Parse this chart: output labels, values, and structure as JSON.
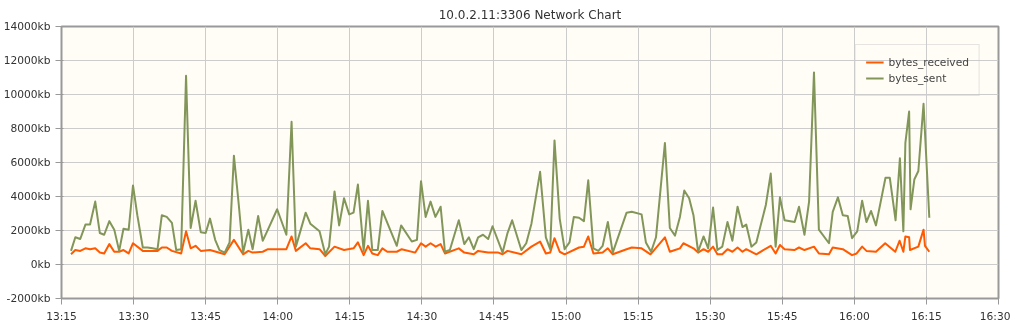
{
  "chart_data": {
    "type": "line",
    "title": "10.0.2.11:3306 Network Chart",
    "xlim": [
      13.25,
      16.5
    ],
    "xticks": [
      {
        "value": 13.25,
        "label": "13:15"
      },
      {
        "value": 13.5,
        "label": "13:30"
      },
      {
        "value": 13.75,
        "label": "13:45"
      },
      {
        "value": 14,
        "label": "14:00"
      },
      {
        "value": 14.25,
        "label": "14:15"
      },
      {
        "value": 14.5,
        "label": "14:30"
      },
      {
        "value": 14.75,
        "label": "14:45"
      },
      {
        "value": 15,
        "label": "15:00"
      },
      {
        "value": 15.25,
        "label": "15:15"
      },
      {
        "value": 15.5,
        "label": "15:30"
      },
      {
        "value": 15.75,
        "label": "15:45"
      },
      {
        "value": 16,
        "label": "16:00"
      },
      {
        "value": 16.25,
        "label": "16:15"
      },
      {
        "value": 16.5,
        "label": "16:30"
      }
    ],
    "ylim": [
      -2000,
      14000
    ],
    "yticks": [
      {
        "value": -2000,
        "label": "-2000kb"
      },
      {
        "value": 0,
        "label": "0kb"
      },
      {
        "value": 2000,
        "label": "2000kb"
      },
      {
        "value": 4000,
        "label": "4000kb"
      },
      {
        "value": 6000,
        "label": "6000kb"
      },
      {
        "value": 8000,
        "label": "8000kb"
      },
      {
        "value": 10000,
        "label": "10000kb"
      },
      {
        "value": 12000,
        "label": "12000kb"
      },
      {
        "value": 14000,
        "label": "14000kb"
      }
    ],
    "grid": true,
    "legend": "top right",
    "marker": "none",
    "line_style": "solid",
    "series": [
      {
        "name": "bytes_received",
        "color": "#ff5a00",
        "x": [
          13.283,
          13.298,
          13.315,
          13.333,
          13.349,
          13.367,
          13.383,
          13.398,
          13.416,
          13.433,
          13.45,
          13.465,
          13.483,
          13.498,
          13.532,
          13.583,
          13.598,
          13.615,
          13.633,
          13.665,
          13.682,
          13.698,
          13.715,
          13.733,
          13.765,
          13.816,
          13.848,
          13.88,
          13.898,
          13.913,
          13.948,
          13.966,
          14.03,
          14.048,
          14.063,
          14.097,
          14.113,
          14.145,
          14.165,
          14.197,
          14.23,
          14.263,
          14.278,
          14.298,
          14.313,
          14.328,
          14.347,
          14.363,
          14.38,
          14.413,
          14.43,
          14.477,
          14.497,
          14.513,
          14.53,
          14.548,
          14.565,
          14.58,
          14.628,
          14.647,
          14.68,
          14.695,
          14.73,
          14.765,
          14.78,
          14.797,
          14.845,
          14.88,
          14.91,
          14.93,
          14.945,
          14.96,
          14.978,
          14.995,
          15.045,
          15.062,
          15.077,
          15.095,
          15.127,
          15.145,
          15.162,
          15.21,
          15.228,
          15.262,
          15.293,
          15.343,
          15.36,
          15.378,
          15.395,
          15.407,
          15.442,
          15.458,
          15.477,
          15.493,
          15.51,
          15.525,
          15.542,
          15.56,
          15.577,
          15.595,
          15.612,
          15.625,
          15.66,
          15.71,
          15.727,
          15.742,
          15.758,
          15.792,
          15.808,
          15.827,
          15.86,
          15.877,
          15.912,
          15.925,
          15.96,
          15.992,
          16.008,
          16.027,
          16.042,
          16.075,
          16.107,
          16.142,
          16.157,
          16.17,
          16.177,
          16.19,
          16.193,
          16.222,
          16.24,
          16.245,
          16.26
        ],
        "values": [
          600,
          850,
          800,
          950,
          900,
          950,
          700,
          650,
          1200,
          750,
          750,
          850,
          650,
          1250,
          800,
          800,
          1000,
          1000,
          800,
          650,
          1950,
          950,
          1100,
          800,
          850,
          600,
          1450,
          600,
          800,
          700,
          750,
          900,
          900,
          1650,
          800,
          1250,
          950,
          900,
          500,
          1050,
          850,
          950,
          1300,
          550,
          1100,
          650,
          550,
          950,
          750,
          750,
          900,
          700,
          1250,
          1050,
          1250,
          1050,
          1200,
          650,
          950,
          700,
          600,
          800,
          700,
          700,
          600,
          800,
          600,
          1050,
          1350,
          650,
          700,
          1550,
          750,
          600,
          1000,
          1050,
          1650,
          650,
          700,
          950,
          600,
          900,
          1000,
          950,
          600,
          1600,
          750,
          850,
          950,
          1250,
          950,
          700,
          900,
          750,
          1050,
          600,
          600,
          900,
          750,
          1000,
          750,
          900,
          600,
          1100,
          650,
          1150,
          900,
          850,
          1000,
          850,
          1050,
          650,
          600,
          1000,
          900,
          550,
          650,
          1050,
          800,
          750,
          1250,
          750,
          1400,
          750,
          1650,
          1600,
          850,
          1050,
          2050,
          1100,
          750
        ]
      },
      {
        "name": "bytes_sent",
        "color": "#83965a",
        "x": [
          13.283,
          13.298,
          13.315,
          13.333,
          13.349,
          13.367,
          13.383,
          13.398,
          13.416,
          13.433,
          13.45,
          13.465,
          13.483,
          13.498,
          13.513,
          13.532,
          13.548,
          13.566,
          13.583,
          13.598,
          13.615,
          13.633,
          13.648,
          13.665,
          13.682,
          13.698,
          13.715,
          13.733,
          13.75,
          13.765,
          13.783,
          13.798,
          13.816,
          13.833,
          13.848,
          13.865,
          13.88,
          13.898,
          13.913,
          13.932,
          13.948,
          13.966,
          13.998,
          14.03,
          14.048,
          14.063,
          14.097,
          14.113,
          14.145,
          14.165,
          14.178,
          14.197,
          14.213,
          14.23,
          14.248,
          14.263,
          14.278,
          14.298,
          14.313,
          14.328,
          14.347,
          14.363,
          14.413,
          14.428,
          14.465,
          14.483,
          14.497,
          14.513,
          14.53,
          14.547,
          14.565,
          14.58,
          14.597,
          14.628,
          14.647,
          14.663,
          14.68,
          14.695,
          14.712,
          14.73,
          14.745,
          14.78,
          14.797,
          14.813,
          14.845,
          14.862,
          14.88,
          14.91,
          14.93,
          14.945,
          14.96,
          14.978,
          14.995,
          15.012,
          15.027,
          15.045,
          15.062,
          15.077,
          15.095,
          15.112,
          15.127,
          15.145,
          15.162,
          15.21,
          15.228,
          15.262,
          15.277,
          15.295,
          15.312,
          15.343,
          15.36,
          15.378,
          15.395,
          15.41,
          15.427,
          15.442,
          15.458,
          15.477,
          15.493,
          15.51,
          15.525,
          15.542,
          15.56,
          15.577,
          15.595,
          15.612,
          15.625,
          15.643,
          15.66,
          15.693,
          15.71,
          15.727,
          15.742,
          15.758,
          15.793,
          15.808,
          15.827,
          15.843,
          15.86,
          15.877,
          15.912,
          15.925,
          15.943,
          15.96,
          15.977,
          15.992,
          16.01,
          16.027,
          16.042,
          16.058,
          16.075,
          16.108,
          16.123,
          16.143,
          16.158,
          16.17,
          16.177,
          16.19,
          16.195,
          16.208,
          16.222,
          16.24,
          16.26
        ],
        "values": [
          800,
          1600,
          1500,
          2350,
          2350,
          3700,
          1850,
          1750,
          2550,
          2050,
          800,
          2100,
          2050,
          4650,
          2900,
          1000,
          1000,
          950,
          900,
          2900,
          2800,
          2450,
          850,
          900,
          11100,
          2150,
          3750,
          1900,
          1850,
          2700,
          1450,
          850,
          700,
          1300,
          6400,
          3500,
          700,
          2050,
          900,
          2850,
          1400,
          2050,
          3250,
          1750,
          8400,
          1050,
          3050,
          2400,
          1950,
          600,
          1050,
          4300,
          2300,
          3900,
          2950,
          3050,
          4700,
          800,
          3750,
          850,
          850,
          3150,
          1100,
          2300,
          1350,
          1450,
          4900,
          2800,
          3700,
          2800,
          3400,
          750,
          850,
          2600,
          1200,
          1600,
          900,
          1600,
          1750,
          1500,
          2250,
          700,
          1850,
          2600,
          850,
          1250,
          2400,
          5450,
          1600,
          900,
          7300,
          2700,
          900,
          1300,
          2800,
          2750,
          2550,
          4950,
          950,
          800,
          1100,
          2500,
          700,
          3050,
          3100,
          2950,
          1300,
          750,
          1600,
          7150,
          2150,
          1700,
          2800,
          4350,
          3900,
          2900,
          750,
          1650,
          950,
          3350,
          850,
          1050,
          2500,
          1400,
          3400,
          2200,
          2350,
          1050,
          1300,
          3500,
          5350,
          1050,
          3950,
          2600,
          2500,
          3400,
          1750,
          3700,
          11300,
          2050,
          1250,
          3100,
          3950,
          2900,
          2850,
          1550,
          1950,
          3750,
          2500,
          3150,
          2300,
          5100,
          5100,
          2600,
          6250,
          1950,
          7150,
          9000,
          3250,
          5000,
          5500,
          9450,
          2750
        ]
      }
    ]
  }
}
